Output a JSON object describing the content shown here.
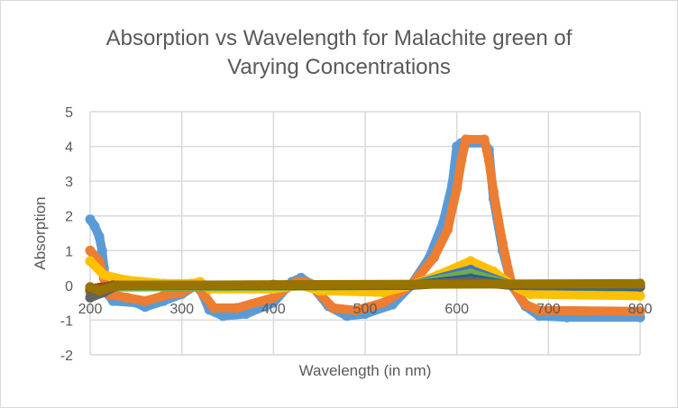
{
  "chart_data": {
    "type": "line",
    "title_line1": "Absorption vs Wavelength for Malachite green of",
    "title_line2": "Varying Concentrations",
    "xlabel": "Wavelength (in nm)",
    "ylabel": "Absorption",
    "xlim": [
      200,
      800
    ],
    "ylim": [
      -2,
      5
    ],
    "xticks": [
      200,
      300,
      400,
      500,
      600,
      700,
      800
    ],
    "yticks": [
      -2,
      -1,
      0,
      1,
      2,
      3,
      4,
      5
    ],
    "grid": true,
    "legend": "none",
    "markers": true,
    "series": [
      {
        "color": "#5B9BD5",
        "points": [
          [
            200,
            1.9
          ],
          [
            205,
            1.7
          ],
          [
            210,
            1.4
          ],
          [
            213,
            1.0
          ],
          [
            215,
            0.5
          ],
          [
            218,
            -0.2
          ],
          [
            225,
            -0.45
          ],
          [
            250,
            -0.5
          ],
          [
            260,
            -0.62
          ],
          [
            280,
            -0.45
          ],
          [
            300,
            -0.25
          ],
          [
            315,
            0
          ],
          [
            320,
            -0.1
          ],
          [
            330,
            -0.7
          ],
          [
            345,
            -0.88
          ],
          [
            370,
            -0.82
          ],
          [
            400,
            -0.5
          ],
          [
            420,
            0.1
          ],
          [
            430,
            0.22
          ],
          [
            440,
            0.05
          ],
          [
            460,
            -0.6
          ],
          [
            480,
            -0.88
          ],
          [
            500,
            -0.82
          ],
          [
            530,
            -0.55
          ],
          [
            550,
            0
          ],
          [
            570,
            0.8
          ],
          [
            585,
            1.8
          ],
          [
            595,
            2.9
          ],
          [
            600,
            4.0
          ],
          [
            605,
            4.1
          ],
          [
            630,
            4.1
          ],
          [
            635,
            3.9
          ],
          [
            640,
            2.5
          ],
          [
            650,
            1.0
          ],
          [
            660,
            0
          ],
          [
            675,
            -0.6
          ],
          [
            690,
            -0.88
          ],
          [
            720,
            -0.92
          ],
          [
            800,
            -0.92
          ]
        ]
      },
      {
        "color": "#ED7D31",
        "points": [
          [
            200,
            1.0
          ],
          [
            210,
            0.7
          ],
          [
            215,
            0.2
          ],
          [
            220,
            -0.25
          ],
          [
            240,
            -0.35
          ],
          [
            260,
            -0.45
          ],
          [
            280,
            -0.3
          ],
          [
            300,
            -0.2
          ],
          [
            315,
            0
          ],
          [
            325,
            -0.3
          ],
          [
            335,
            -0.65
          ],
          [
            360,
            -0.65
          ],
          [
            400,
            -0.35
          ],
          [
            425,
            0.1
          ],
          [
            435,
            0.1
          ],
          [
            445,
            -0.1
          ],
          [
            465,
            -0.65
          ],
          [
            490,
            -0.72
          ],
          [
            520,
            -0.5
          ],
          [
            550,
            0
          ],
          [
            575,
            0.8
          ],
          [
            590,
            1.6
          ],
          [
            600,
            2.8
          ],
          [
            605,
            3.6
          ],
          [
            610,
            4.2
          ],
          [
            630,
            4.2
          ],
          [
            635,
            3.6
          ],
          [
            640,
            2.7
          ],
          [
            650,
            1.2
          ],
          [
            660,
            0
          ],
          [
            675,
            -0.55
          ],
          [
            690,
            -0.72
          ],
          [
            800,
            -0.75
          ]
        ]
      },
      {
        "color": "#A5A5A5",
        "points": [
          [
            200,
            -0.15
          ],
          [
            220,
            0
          ],
          [
            550,
            0
          ],
          [
            615,
            0.3
          ],
          [
            660,
            0
          ],
          [
            800,
            -0.05
          ]
        ]
      },
      {
        "color": "#FFC000",
        "points": [
          [
            200,
            0.7
          ],
          [
            215,
            0.3
          ],
          [
            240,
            0.15
          ],
          [
            280,
            0.05
          ],
          [
            310,
            0.05
          ],
          [
            320,
            0.1
          ],
          [
            330,
            -0.1
          ],
          [
            400,
            -0.1
          ],
          [
            430,
            0
          ],
          [
            450,
            -0.15
          ],
          [
            520,
            -0.2
          ],
          [
            550,
            0
          ],
          [
            580,
            0.3
          ],
          [
            615,
            0.7
          ],
          [
            640,
            0.4
          ],
          [
            660,
            0
          ],
          [
            680,
            -0.25
          ],
          [
            800,
            -0.3
          ]
        ]
      },
      {
        "color": "#4472C4",
        "points": [
          [
            200,
            -0.1
          ],
          [
            225,
            0
          ],
          [
            550,
            0
          ],
          [
            615,
            0.45
          ],
          [
            660,
            0
          ],
          [
            800,
            -0.05
          ]
        ]
      },
      {
        "color": "#70AD47",
        "points": [
          [
            200,
            -0.2
          ],
          [
            225,
            -0.05
          ],
          [
            550,
            0
          ],
          [
            615,
            0.35
          ],
          [
            660,
            0
          ],
          [
            800,
            -0.05
          ]
        ]
      },
      {
        "color": "#255E91",
        "points": [
          [
            200,
            -0.1
          ],
          [
            225,
            0
          ],
          [
            550,
            0
          ],
          [
            615,
            0.2
          ],
          [
            660,
            0
          ],
          [
            800,
            -0.03
          ]
        ]
      },
      {
        "color": "#9E480E",
        "points": [
          [
            200,
            -0.1
          ],
          [
            225,
            0
          ],
          [
            550,
            0
          ],
          [
            615,
            0.1
          ],
          [
            660,
            0
          ],
          [
            800,
            0
          ]
        ]
      },
      {
        "color": "#636363",
        "points": [
          [
            200,
            -0.35
          ],
          [
            215,
            -0.2
          ],
          [
            230,
            0
          ],
          [
            550,
            0
          ],
          [
            615,
            0.12
          ],
          [
            660,
            0
          ],
          [
            800,
            0.02
          ]
        ]
      },
      {
        "color": "#997300",
        "points": [
          [
            200,
            -0.05
          ],
          [
            210,
            -0.15
          ],
          [
            230,
            0
          ],
          [
            400,
            0.02
          ],
          [
            800,
            0.05
          ]
        ]
      }
    ]
  }
}
